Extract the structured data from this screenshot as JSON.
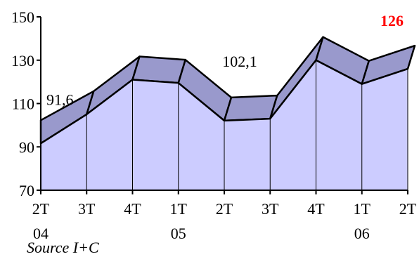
{
  "chart_data": {
    "type": "area",
    "style": "3d-area",
    "categories": [
      {
        "quarter": "2T",
        "year": "04"
      },
      {
        "quarter": "3T",
        "year": ""
      },
      {
        "quarter": "4T",
        "year": ""
      },
      {
        "quarter": "1T",
        "year": "05"
      },
      {
        "quarter": "2T",
        "year": ""
      },
      {
        "quarter": "3T",
        "year": ""
      },
      {
        "quarter": "4T",
        "year": ""
      },
      {
        "quarter": "1T",
        "year": "06"
      },
      {
        "quarter": "2T",
        "year": ""
      }
    ],
    "values": [
      91.6,
      105,
      121,
      119.5,
      102.1,
      103,
      130,
      119,
      126
    ],
    "ylim": [
      70,
      150
    ],
    "yticks": [
      70,
      90,
      110,
      130,
      150
    ],
    "data_labels": [
      {
        "index": 0,
        "text": "91,6"
      },
      {
        "index": 4,
        "text": "102,1"
      },
      {
        "index": 8,
        "text": "126",
        "highlight": true
      }
    ],
    "colors": {
      "front": "#ccccff",
      "top": "#9999cc",
      "outline": "#000000",
      "highlight": "#ff0000"
    }
  },
  "source": "Source I+C"
}
